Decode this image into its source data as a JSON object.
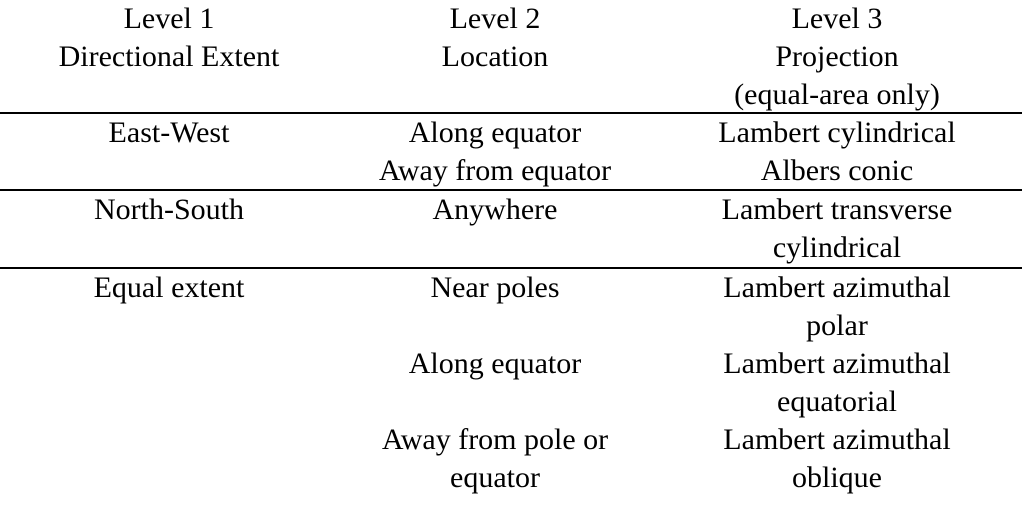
{
  "header": {
    "col1": [
      "Level 1",
      "Directional Extent"
    ],
    "col2": [
      "Level 2",
      "Location"
    ],
    "col3": [
      "Level 3",
      "Projection",
      "(equal-area only)"
    ]
  },
  "rows": [
    {
      "level1": "East-West",
      "locations": [
        "Along equator",
        "Away from equator"
      ],
      "projections": [
        "Lambert cylindrical",
        "Albers conic"
      ]
    },
    {
      "level1": "North-South",
      "locations": [
        "Anywhere"
      ],
      "projections": [
        "Lambert transverse",
        "cylindrical"
      ]
    },
    {
      "level1": "Equal extent",
      "groups": [
        {
          "location": [
            "Near poles"
          ],
          "projection": [
            "Lambert azimuthal",
            "polar"
          ]
        },
        {
          "location": [
            "Along equator"
          ],
          "projection": [
            "Lambert azimuthal",
            "equatorial"
          ]
        },
        {
          "location": [
            "Away from pole or",
            "equator"
          ],
          "projection": [
            "Lambert azimuthal",
            "oblique"
          ]
        }
      ]
    }
  ]
}
